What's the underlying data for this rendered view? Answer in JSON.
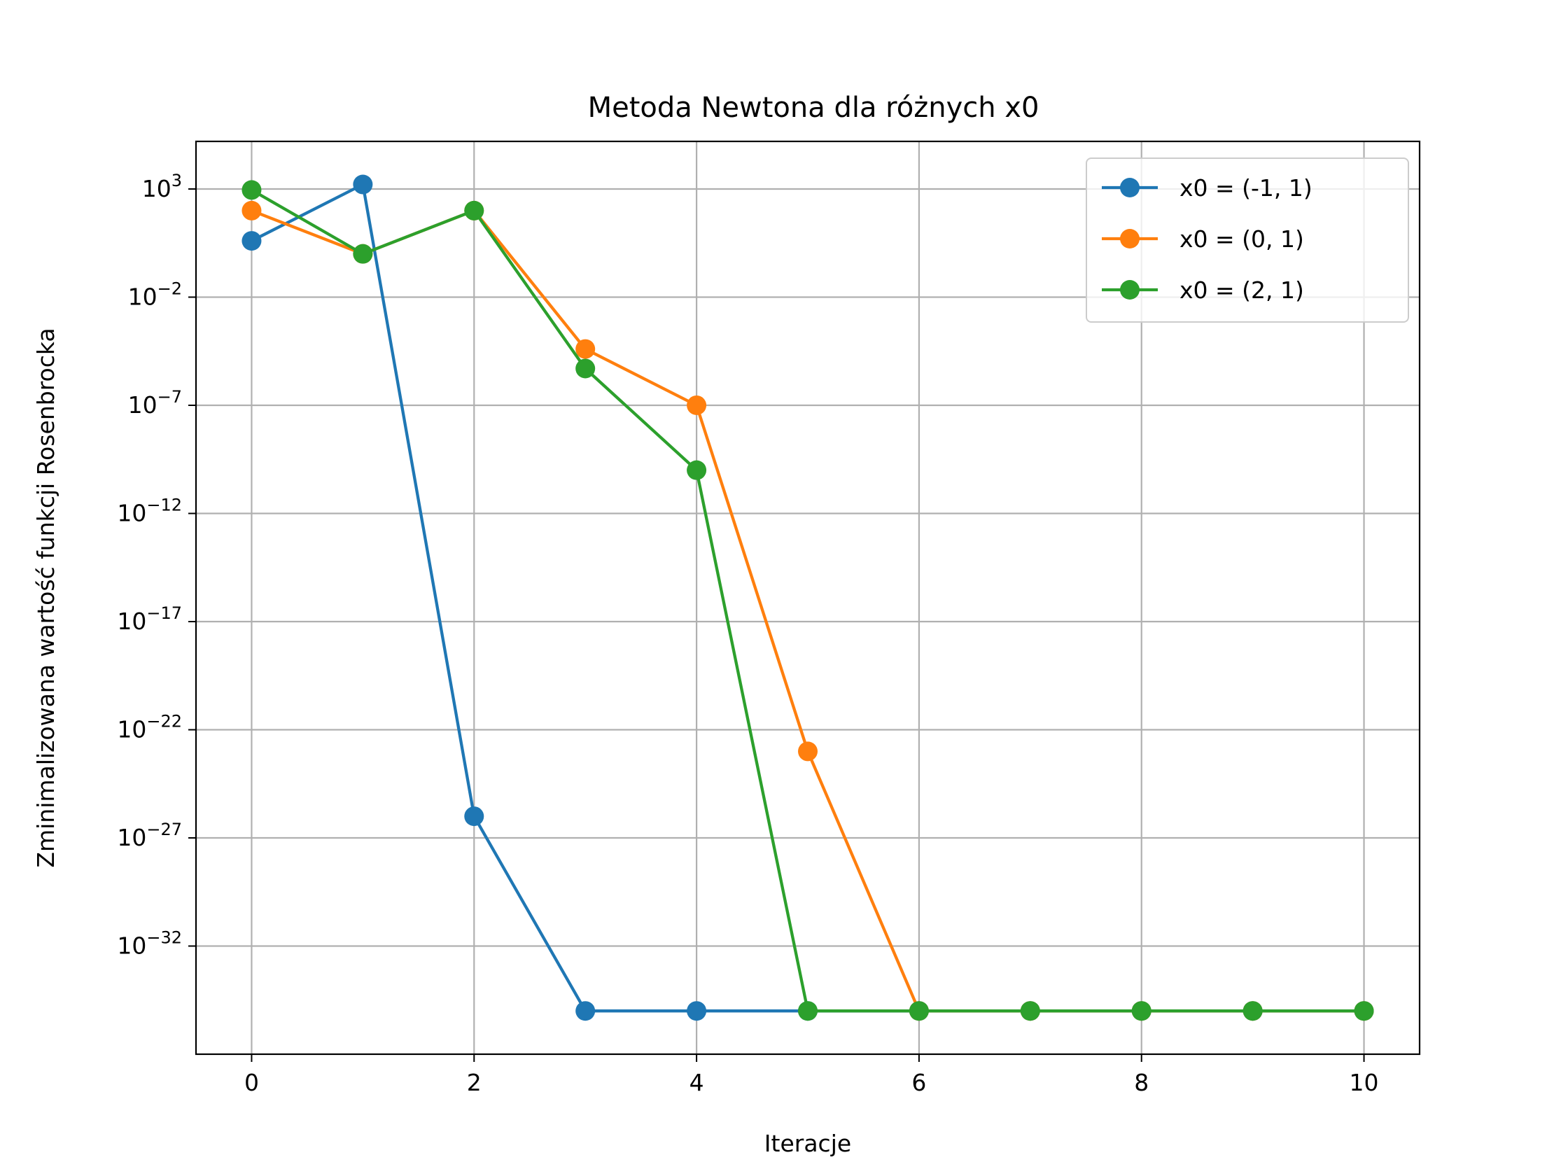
{
  "chart_data": {
    "type": "line",
    "title": "Metoda Newtona dla różnych x0",
    "xlabel": "Iteracje",
    "ylabel": "Zminimalizowana wartość funkcji Rosenbrocka",
    "yscale": "log",
    "xlim": [
      -0.5,
      10.5
    ],
    "ylim_log10": [
      -37,
      5.2
    ],
    "xticks": [
      0,
      2,
      4,
      6,
      8,
      10
    ],
    "yticks": [
      {
        "exp": 3,
        "label": "3"
      },
      {
        "exp": -2,
        "label": "−2"
      },
      {
        "exp": -7,
        "label": "−7"
      },
      {
        "exp": -12,
        "label": "−12"
      },
      {
        "exp": -17,
        "label": "−17"
      },
      {
        "exp": -22,
        "label": "−22"
      },
      {
        "exp": -27,
        "label": "−27"
      },
      {
        "exp": -32,
        "label": "−32"
      }
    ],
    "ytick_base": "10",
    "grid": true,
    "legend_position": "top-right",
    "series": [
      {
        "name": "x0 = (-1, 1)",
        "color": "#1f77b4",
        "x": [
          0,
          1,
          2,
          3,
          4,
          5,
          6,
          7,
          8,
          9,
          10
        ],
        "y": [
          4.0,
          1616.0,
          1e-26,
          1e-35,
          1e-35,
          1e-35,
          1e-35,
          1e-35,
          1e-35,
          1e-35,
          1e-35
        ]
      },
      {
        "name": "x0 = (0, 1)",
        "color": "#ff7f0e",
        "x": [
          0,
          1,
          2,
          3,
          4,
          5,
          6,
          7,
          8,
          9,
          10
        ],
        "y": [
          100.0,
          1.0,
          100.0,
          4e-05,
          1e-07,
          1e-23,
          1e-35,
          1e-35,
          1e-35,
          1e-35,
          1e-35
        ]
      },
      {
        "name": "x0 = (2, 1)",
        "color": "#2ca02c",
        "x": [
          0,
          1,
          2,
          3,
          4,
          5,
          6,
          7,
          8,
          9,
          10
        ],
        "y": [
          901.0,
          1.0,
          100.0,
          5e-06,
          1e-10,
          1e-35,
          1e-35,
          1e-35,
          1e-35,
          1e-35,
          1e-35
        ]
      }
    ]
  }
}
